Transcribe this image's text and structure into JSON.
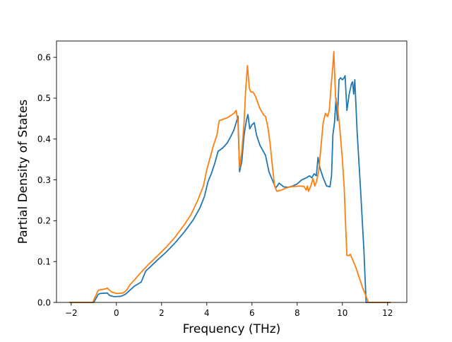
{
  "chart_data": {
    "type": "line",
    "title": "",
    "xlabel": "Frequency (THz)",
    "ylabel": "Partial Density of States",
    "xlim": [
      -2.65,
      12.85
    ],
    "ylim": [
      0.0,
      0.64
    ],
    "xticks": [
      -2,
      0,
      2,
      4,
      6,
      8,
      10,
      12
    ],
    "xtick_labels": [
      "−2",
      "0",
      "2",
      "4",
      "6",
      "8",
      "10",
      "12"
    ],
    "yticks": [
      0.0,
      0.1,
      0.2,
      0.3,
      0.4,
      0.5,
      0.6
    ],
    "ytick_labels": [
      "0.0",
      "0.1",
      "0.2",
      "0.3",
      "0.4",
      "0.5",
      "0.6"
    ],
    "grid": false,
    "legend": "none",
    "series": [
      {
        "color": "#1f77b4",
        "points": [
          [
            -2.05,
            0.0
          ],
          [
            -1.0,
            0.0
          ],
          [
            -0.8,
            0.02
          ],
          [
            -0.7,
            0.022
          ],
          [
            -0.4,
            0.023
          ],
          [
            -0.3,
            0.017
          ],
          [
            -0.1,
            0.014
          ],
          [
            0.2,
            0.015
          ],
          [
            0.4,
            0.02
          ],
          [
            0.6,
            0.03
          ],
          [
            0.8,
            0.04
          ],
          [
            1.1,
            0.05
          ],
          [
            1.3,
            0.077
          ],
          [
            1.5,
            0.087
          ],
          [
            1.8,
            0.103
          ],
          [
            2.2,
            0.123
          ],
          [
            2.6,
            0.146
          ],
          [
            3.0,
            0.172
          ],
          [
            3.4,
            0.202
          ],
          [
            3.7,
            0.232
          ],
          [
            3.9,
            0.26
          ],
          [
            4.05,
            0.295
          ],
          [
            4.2,
            0.315
          ],
          [
            4.35,
            0.34
          ],
          [
            4.5,
            0.37
          ],
          [
            4.7,
            0.378
          ],
          [
            4.9,
            0.39
          ],
          [
            5.05,
            0.405
          ],
          [
            5.2,
            0.422
          ],
          [
            5.3,
            0.44
          ],
          [
            5.38,
            0.456
          ],
          [
            5.45,
            0.32
          ],
          [
            5.55,
            0.345
          ],
          [
            5.65,
            0.41
          ],
          [
            5.75,
            0.445
          ],
          [
            5.82,
            0.46
          ],
          [
            5.9,
            0.425
          ],
          [
            6.0,
            0.435
          ],
          [
            6.1,
            0.44
          ],
          [
            6.2,
            0.41
          ],
          [
            6.35,
            0.385
          ],
          [
            6.5,
            0.37
          ],
          [
            6.6,
            0.36
          ],
          [
            6.75,
            0.32
          ],
          [
            6.9,
            0.3
          ],
          [
            7.05,
            0.28
          ],
          [
            7.2,
            0.292
          ],
          [
            7.4,
            0.283
          ],
          [
            7.6,
            0.282
          ],
          [
            7.8,
            0.285
          ],
          [
            8.0,
            0.29
          ],
          [
            8.2,
            0.3
          ],
          [
            8.4,
            0.305
          ],
          [
            8.55,
            0.31
          ],
          [
            8.65,
            0.305
          ],
          [
            8.75,
            0.315
          ],
          [
            8.85,
            0.31
          ],
          [
            8.92,
            0.355
          ],
          [
            9.0,
            0.33
          ],
          [
            9.15,
            0.305
          ],
          [
            9.3,
            0.285
          ],
          [
            9.45,
            0.283
          ],
          [
            9.52,
            0.31
          ],
          [
            9.58,
            0.41
          ],
          [
            9.65,
            0.44
          ],
          [
            9.72,
            0.5
          ],
          [
            9.78,
            0.445
          ],
          [
            9.85,
            0.545
          ],
          [
            9.92,
            0.55
          ],
          [
            10.0,
            0.545
          ],
          [
            10.08,
            0.55
          ],
          [
            10.12,
            0.555
          ],
          [
            10.2,
            0.47
          ],
          [
            10.3,
            0.51
          ],
          [
            10.4,
            0.535
          ],
          [
            10.45,
            0.54
          ],
          [
            10.5,
            0.51
          ],
          [
            10.55,
            0.545
          ],
          [
            10.65,
            0.42
          ],
          [
            10.8,
            0.28
          ],
          [
            10.95,
            0.13
          ],
          [
            11.05,
            0.0
          ],
          [
            12.1,
            0.0
          ]
        ]
      },
      {
        "color": "#ff7f0e",
        "points": [
          [
            -2.05,
            0.0
          ],
          [
            -1.05,
            0.0
          ],
          [
            -0.8,
            0.03
          ],
          [
            -0.5,
            0.033
          ],
          [
            -0.4,
            0.035
          ],
          [
            -0.2,
            0.025
          ],
          [
            0.0,
            0.022
          ],
          [
            0.3,
            0.023
          ],
          [
            0.45,
            0.03
          ],
          [
            0.6,
            0.043
          ],
          [
            0.8,
            0.055
          ],
          [
            1.0,
            0.068
          ],
          [
            1.2,
            0.08
          ],
          [
            1.4,
            0.092
          ],
          [
            1.8,
            0.113
          ],
          [
            2.2,
            0.135
          ],
          [
            2.6,
            0.16
          ],
          [
            3.0,
            0.19
          ],
          [
            3.3,
            0.215
          ],
          [
            3.6,
            0.25
          ],
          [
            3.85,
            0.285
          ],
          [
            4.0,
            0.325
          ],
          [
            4.15,
            0.355
          ],
          [
            4.3,
            0.385
          ],
          [
            4.45,
            0.41
          ],
          [
            4.55,
            0.445
          ],
          [
            4.7,
            0.448
          ],
          [
            4.9,
            0.452
          ],
          [
            5.05,
            0.457
          ],
          [
            5.2,
            0.463
          ],
          [
            5.3,
            0.47
          ],
          [
            5.38,
            0.44
          ],
          [
            5.45,
            0.33
          ],
          [
            5.55,
            0.37
          ],
          [
            5.65,
            0.44
          ],
          [
            5.72,
            0.52
          ],
          [
            5.8,
            0.58
          ],
          [
            5.88,
            0.525
          ],
          [
            5.95,
            0.515
          ],
          [
            6.05,
            0.515
          ],
          [
            6.15,
            0.505
          ],
          [
            6.25,
            0.49
          ],
          [
            6.35,
            0.475
          ],
          [
            6.5,
            0.46
          ],
          [
            6.6,
            0.455
          ],
          [
            6.7,
            0.43
          ],
          [
            6.8,
            0.39
          ],
          [
            6.9,
            0.335
          ],
          [
            7.0,
            0.285
          ],
          [
            7.1,
            0.272
          ],
          [
            7.3,
            0.275
          ],
          [
            7.5,
            0.28
          ],
          [
            7.7,
            0.283
          ],
          [
            7.9,
            0.284
          ],
          [
            8.1,
            0.285
          ],
          [
            8.3,
            0.284
          ],
          [
            8.4,
            0.275
          ],
          [
            8.45,
            0.285
          ],
          [
            8.5,
            0.272
          ],
          [
            8.6,
            0.285
          ],
          [
            8.7,
            0.303
          ],
          [
            8.78,
            0.285
          ],
          [
            8.85,
            0.295
          ],
          [
            8.95,
            0.32
          ],
          [
            9.05,
            0.38
          ],
          [
            9.15,
            0.44
          ],
          [
            9.25,
            0.463
          ],
          [
            9.35,
            0.455
          ],
          [
            9.42,
            0.47
          ],
          [
            9.5,
            0.53
          ],
          [
            9.58,
            0.58
          ],
          [
            9.62,
            0.614
          ],
          [
            9.7,
            0.5
          ],
          [
            9.78,
            0.48
          ],
          [
            9.88,
            0.43
          ],
          [
            10.0,
            0.35
          ],
          [
            10.08,
            0.28
          ],
          [
            10.15,
            0.18
          ],
          [
            10.2,
            0.115
          ],
          [
            10.3,
            0.115
          ],
          [
            10.35,
            0.118
          ],
          [
            10.45,
            0.105
          ],
          [
            10.6,
            0.085
          ],
          [
            10.75,
            0.06
          ],
          [
            10.9,
            0.035
          ],
          [
            11.05,
            0.015
          ],
          [
            11.15,
            0.0
          ],
          [
            12.1,
            0.0
          ]
        ]
      }
    ]
  }
}
